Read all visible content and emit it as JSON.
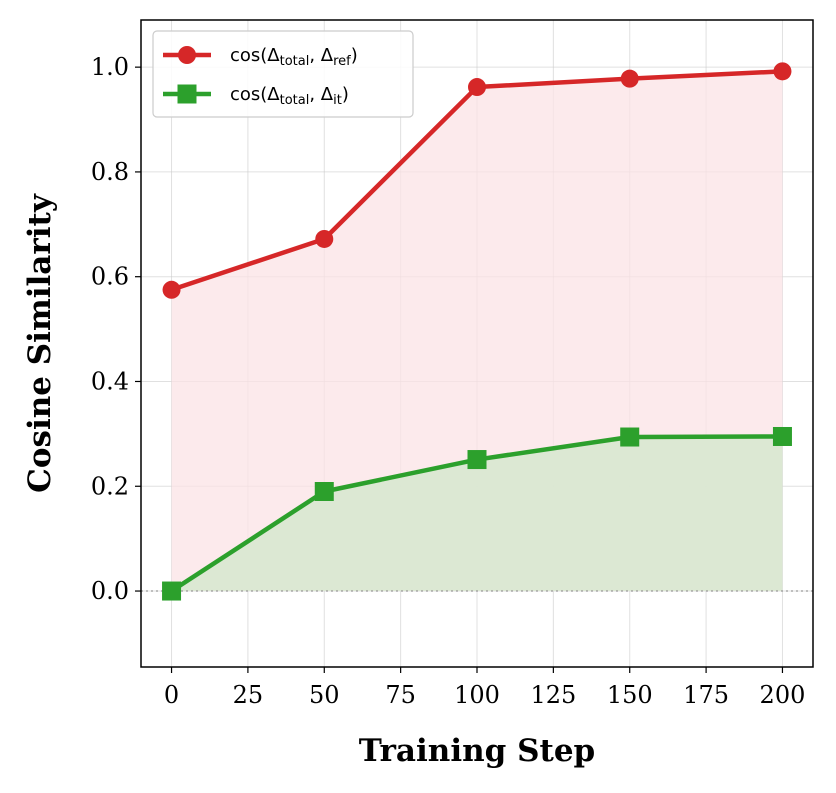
{
  "chart_data": {
    "type": "line",
    "xlabel": "Training Step",
    "ylabel": "Cosine Similarity",
    "x": [
      0,
      50,
      100,
      150,
      200
    ],
    "xlim": [
      -10,
      210
    ],
    "ylim": [
      -0.145,
      1.09
    ],
    "xticks": [
      0,
      25,
      50,
      75,
      100,
      125,
      150,
      175,
      200
    ],
    "yticks": [
      0.0,
      0.2,
      0.4,
      0.6,
      0.8,
      1.0
    ],
    "grid": true,
    "legend_position": "top-left",
    "series": [
      {
        "name": "cos(Δtotal, Δref)",
        "legend": {
          "prefix": "cos(Δ",
          "sub1": "total",
          "mid": ", Δ",
          "sub2": "ref",
          "suffix": ")"
        },
        "values": [
          0.575,
          0.672,
          0.962,
          0.978,
          0.992
        ],
        "color": "#d62728",
        "marker": "circle",
        "fill_color": "#fbe3e6"
      },
      {
        "name": "cos(Δtotal, Δit)",
        "legend": {
          "prefix": "cos(Δ",
          "sub1": "total",
          "mid": ", Δ",
          "sub2": "it",
          "suffix": ")"
        },
        "values": [
          0.0,
          0.19,
          0.251,
          0.294,
          0.295
        ],
        "color": "#2ca02c",
        "marker": "square",
        "fill_color": "#d8e8d0"
      }
    ]
  }
}
